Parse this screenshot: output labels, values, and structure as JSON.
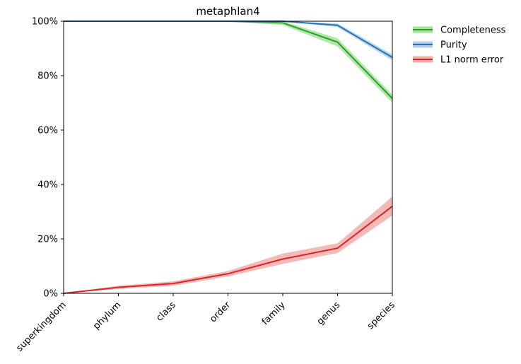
{
  "chart_data": {
    "type": "line",
    "title": "metaphlan4",
    "xlabel": "",
    "ylabel": "",
    "categories": [
      "superkingdom",
      "phylum",
      "class",
      "order",
      "family",
      "genus",
      "species"
    ],
    "ylim": [
      0,
      1
    ],
    "yticks": [
      "0%",
      "20%",
      "40%",
      "60%",
      "80%",
      "100%"
    ],
    "grid": false,
    "legend_position": "outside-top-right",
    "series": [
      {
        "name": "Completeness",
        "color": "#2ca02c",
        "band_color": "#98df8a",
        "values": [
          1.0,
          1.0,
          1.0,
          1.0,
          0.994,
          0.923,
          0.716
        ],
        "lower": [
          1.0,
          1.0,
          1.0,
          1.0,
          0.986,
          0.907,
          0.7
        ],
        "upper": [
          1.0,
          1.0,
          1.0,
          1.0,
          1.0,
          0.937,
          0.73
        ]
      },
      {
        "name": "Purity",
        "color": "#1f77b4",
        "band_color": "#aec7e8",
        "values": [
          1.0,
          1.0,
          1.0,
          1.0,
          1.0,
          0.985,
          0.867
        ],
        "lower": [
          1.0,
          1.0,
          1.0,
          1.0,
          1.0,
          0.978,
          0.856
        ],
        "upper": [
          1.0,
          1.0,
          1.0,
          1.0,
          1.0,
          0.992,
          0.878
        ]
      },
      {
        "name": "L1 norm error",
        "color": "#d62728",
        "band_color": "#f0a3a3",
        "values": [
          0.0,
          0.022,
          0.036,
          0.072,
          0.126,
          0.166,
          0.32
        ],
        "lower": [
          0.0,
          0.016,
          0.028,
          0.062,
          0.108,
          0.148,
          0.286
        ],
        "upper": [
          0.0,
          0.028,
          0.044,
          0.082,
          0.146,
          0.184,
          0.356
        ]
      }
    ]
  }
}
